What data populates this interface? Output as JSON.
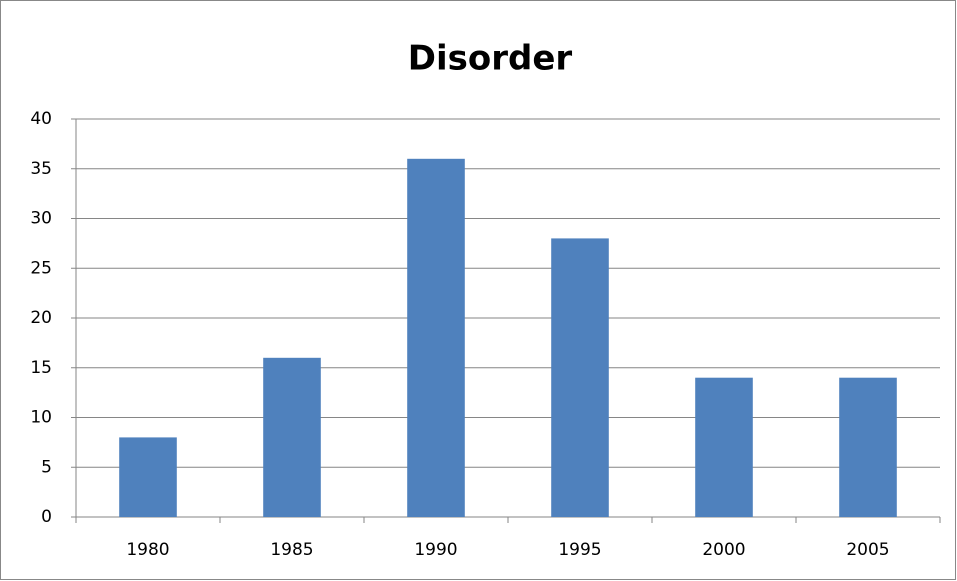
{
  "chart_data": {
    "type": "bar",
    "title": "Disorder",
    "categories": [
      "1980",
      "1985",
      "1990",
      "1995",
      "2000",
      "2005"
    ],
    "values": [
      8,
      16,
      36,
      28,
      14,
      14
    ],
    "color": "#4f81bd",
    "ylim": [
      0,
      40
    ],
    "yticks": [
      0,
      5,
      10,
      15,
      20,
      25,
      30,
      35,
      40
    ],
    "grid": true
  }
}
